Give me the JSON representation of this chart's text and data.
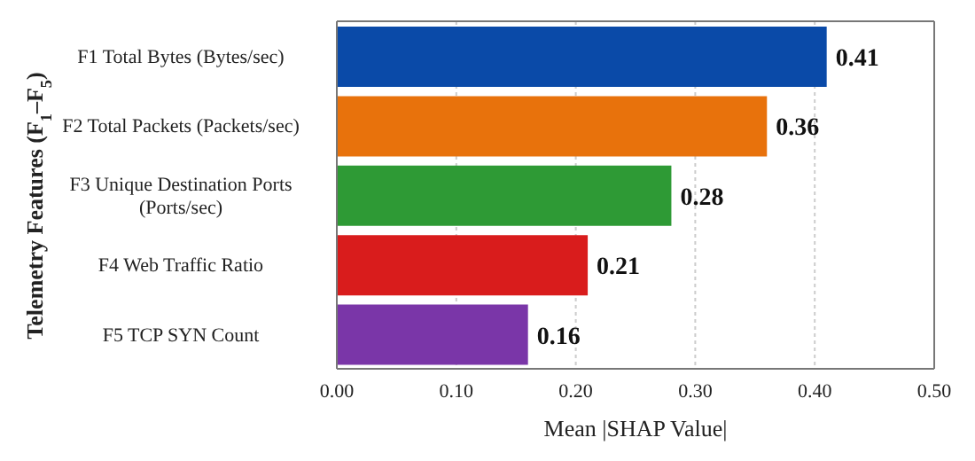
{
  "chart_data": {
    "type": "bar",
    "orientation": "horizontal",
    "xlabel": "Mean |SHAP Value|",
    "ylabel": "Telemetry Features (F$_{1}$–F$_{5}$)",
    "categories": [
      "F1 Total Bytes (Bytes/sec)",
      "F2 Total Packets (Packets/sec)",
      "F3 Unique Destination Ports (Ports/sec)",
      "F4 Web Traffic Ratio",
      "F5 TCP SYN Count"
    ],
    "values": [
      0.41,
      0.36,
      0.28,
      0.21,
      0.16
    ],
    "colors": [
      "#0a4aa8",
      "#e8720c",
      "#2e9a35",
      "#d91c1c",
      "#7a36a8"
    ],
    "xlim": [
      0,
      0.5
    ],
    "xticks": [
      {
        "value": 0,
        "label": "0.00"
      },
      {
        "value": 0.1,
        "label": "0.10"
      },
      {
        "value": 0.2,
        "label": "0.20"
      },
      {
        "value": 0.3,
        "label": "0.30"
      },
      {
        "value": 0.4,
        "label": "0.40"
      },
      {
        "value": 0.5,
        "label": "0.50"
      }
    ],
    "data_labels": true,
    "grid": "x"
  }
}
